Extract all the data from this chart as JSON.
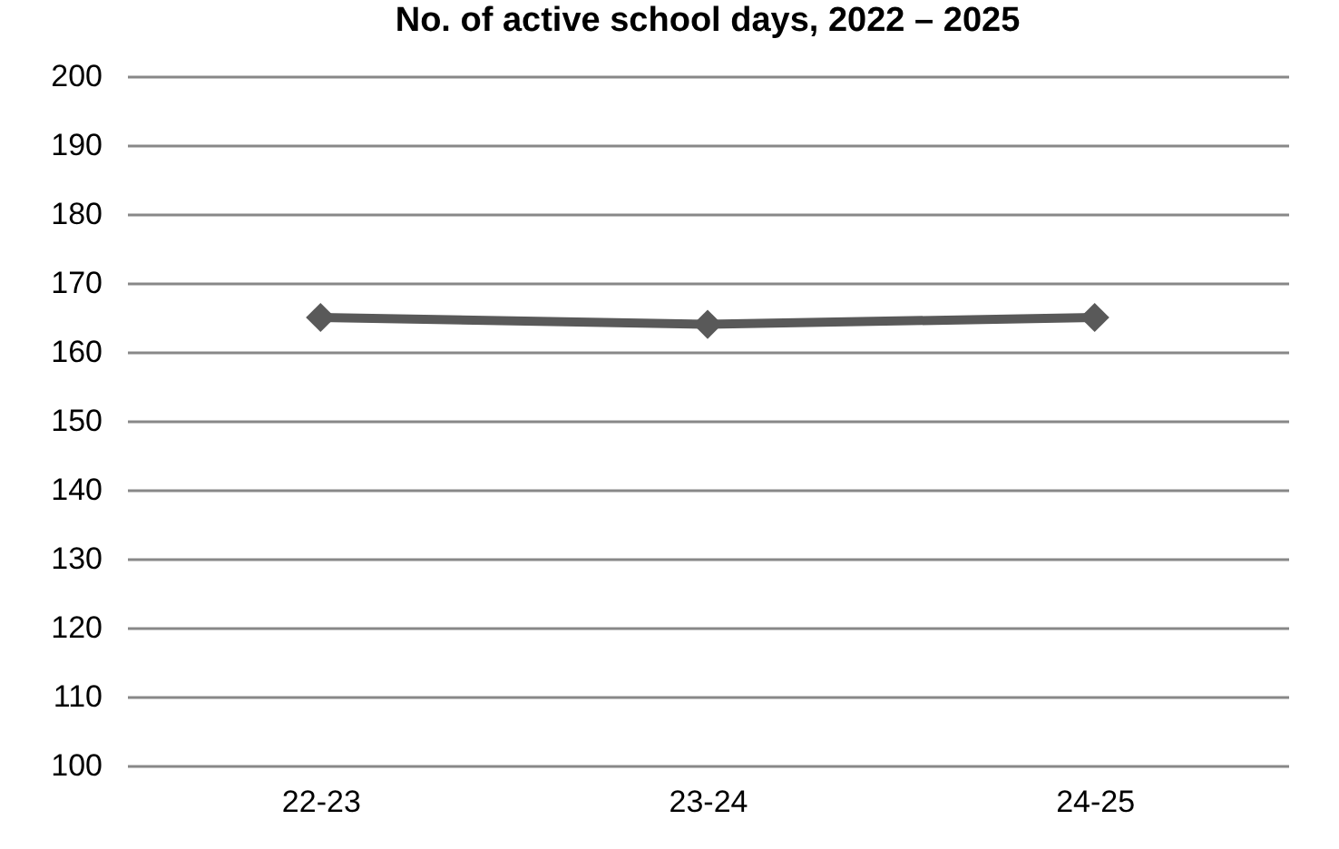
{
  "chart_data": {
    "type": "line",
    "title": "No. of active school days, 2022 – 2025",
    "categories": [
      "22-23",
      "23-24",
      "24-25"
    ],
    "series": [
      {
        "color": "#595959",
        "values": [
          165,
          164,
          165
        ]
      }
    ],
    "ylim": [
      100,
      200
    ],
    "yticks": [
      100,
      110,
      120,
      130,
      140,
      150,
      160,
      170,
      180,
      190,
      200
    ],
    "grid": "y",
    "marker": "diamond"
  }
}
